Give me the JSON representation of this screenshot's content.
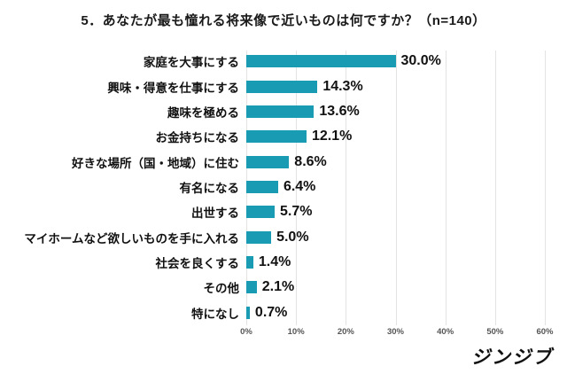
{
  "title": "5．あなたが最も憧れる将来像で近いものは何ですか？（n=140）",
  "logo": "ジンジブ",
  "colors": {
    "bar": "#1a9bb4",
    "gridline": "#e3e3e3",
    "title_text": "#1a1a1a",
    "tick_text": "#555555"
  },
  "chart_data": {
    "type": "bar",
    "orientation": "horizontal",
    "title": "5．あなたが最も憧れる将来像で近いものは何ですか？（n=140）",
    "categories": [
      "家庭を大事にする",
      "興味・得意を仕事にする",
      "趣味を極める",
      "お金持ちになる",
      "好きな場所（国・地域）に住む",
      "有名になる",
      "出世する",
      "マイホームなど欲しいものを手に入れる",
      "社会を良くする",
      "その他",
      "特になし"
    ],
    "values": [
      30.0,
      14.3,
      13.6,
      12.1,
      8.6,
      6.4,
      5.7,
      5.0,
      1.4,
      2.1,
      0.7
    ],
    "value_labels": [
      "30.0%",
      "14.3%",
      "13.6%",
      "12.1%",
      "8.6%",
      "6.4%",
      "5.7%",
      "5.0%",
      "1.4%",
      "2.1%",
      "0.7%"
    ],
    "x_ticks": [
      0,
      10,
      20,
      30,
      40,
      50,
      60
    ],
    "x_tick_labels": [
      "0%",
      "10%",
      "20%",
      "30%",
      "40%",
      "50%",
      "60%"
    ],
    "xlim": [
      0,
      60
    ],
    "xlabel": "",
    "ylabel": "",
    "grid": "vertical",
    "legend": "none"
  }
}
